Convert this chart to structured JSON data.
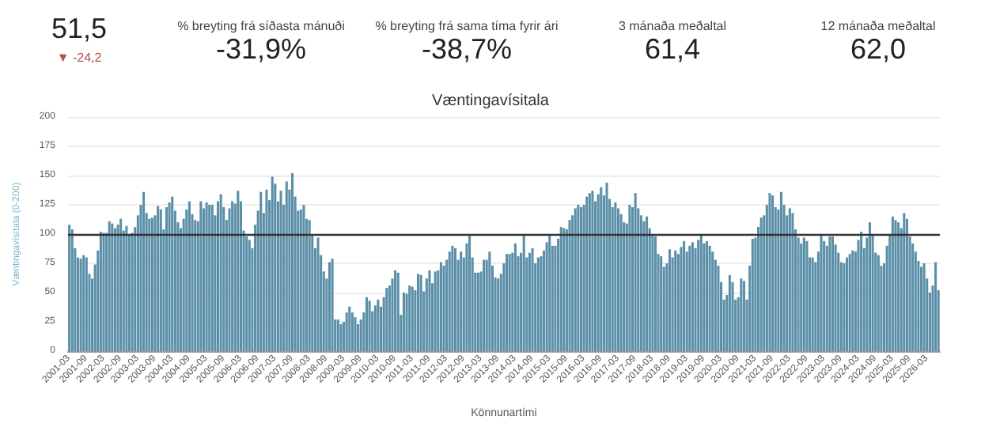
{
  "chart_data": [
    {
      "type": "other",
      "annotations": [
        "51,5",
        "▼ -24,2",
        "% breyting frá síðasta mánuði",
        "-31,9%",
        "% breyting frá sama tíma fyrir ári",
        "-38,7%",
        "3 mánaða meðaltal",
        "61,4",
        "12 mánaða meðaltal",
        "62,0"
      ]
    },
    {
      "type": "bar",
      "title": "Væntingavísitala",
      "xlabel": "Könnunartími",
      "ylabel": "Væntingavísitala (0-200)",
      "color": "#5b8fa8",
      "ylim": [
        0,
        200
      ],
      "yticks": [
        0,
        25,
        50,
        75,
        100,
        125,
        150,
        175,
        200
      ],
      "grid": "y",
      "ref_lines": [
        {
          "axis": "y",
          "value": 100,
          "color": "#333333"
        }
      ],
      "categories": [
        "2001-03",
        null,
        null,
        null,
        null,
        null,
        "2001-09",
        null,
        null,
        null,
        null,
        null,
        "2002-03",
        null,
        null,
        null,
        null,
        null,
        "2002-09",
        null,
        null,
        null,
        null,
        null,
        "2003-03",
        null,
        null,
        null,
        null,
        null,
        "2003-09",
        null,
        null,
        null,
        null,
        null,
        "2004-03",
        null,
        null,
        null,
        null,
        null,
        "2004-09",
        null,
        null,
        null,
        null,
        null,
        "2005-03",
        null,
        null,
        null,
        null,
        null,
        "2005-09",
        null,
        null,
        null,
        null,
        null,
        "2006-03",
        null,
        null,
        null,
        null,
        null,
        "2006-09",
        null,
        null,
        null,
        null,
        null,
        "2007-03",
        null,
        null,
        null,
        null,
        null,
        "2007-09",
        null,
        null,
        null,
        null,
        null,
        "2008-03",
        null,
        null,
        null,
        null,
        null,
        "2008-09",
        null,
        null,
        null,
        null,
        null,
        "2009-03",
        null,
        null,
        null,
        null,
        null,
        "2009-09",
        null,
        null,
        null,
        null,
        null,
        "2010-03",
        null,
        null,
        null,
        null,
        null,
        "2010-09",
        null,
        null,
        null,
        null,
        null,
        "2011-03",
        null,
        null,
        null,
        null,
        null,
        "2011-09",
        null,
        null,
        null,
        null,
        null,
        "2012-03",
        null,
        null,
        null,
        null,
        null,
        "2012-09",
        null,
        null,
        null,
        null,
        null,
        "2013-03",
        null,
        null,
        null,
        null,
        null,
        "2013-09",
        null,
        null,
        null,
        null,
        null,
        "2014-03",
        null,
        null,
        null,
        null,
        null,
        "2014-09",
        null,
        null,
        null,
        null,
        null,
        "2015-03",
        null,
        null,
        null,
        null,
        null,
        "2015-09",
        null,
        null,
        null,
        null,
        null,
        "2016-03",
        null,
        null,
        null,
        null,
        null,
        "2016-09",
        null,
        null,
        null,
        null,
        null,
        "2017-03",
        null,
        null,
        null,
        null,
        null,
        "2017-09",
        null,
        null,
        null,
        null,
        null,
        "2018-03",
        null,
        null,
        null,
        null,
        null,
        "2018-09",
        null,
        null,
        null,
        null,
        null,
        "2019-03",
        null,
        null,
        null,
        null,
        null,
        "2019-09",
        null,
        null,
        null,
        null,
        null,
        "2020-03",
        null,
        null,
        null,
        null,
        null,
        "2020-09",
        null,
        null,
        null,
        null,
        null,
        "2021-03",
        null,
        null,
        null,
        null,
        null,
        "2021-09",
        null,
        null,
        null,
        null,
        null,
        "2022-03",
        null,
        null,
        null,
        null,
        null,
        "2022-09",
        null,
        null,
        null,
        null,
        null,
        "2023-03",
        null,
        null,
        null,
        null,
        null,
        "2023-09",
        null,
        null,
        null,
        null,
        null,
        "2024-03",
        null,
        null,
        null,
        null,
        null,
        "2024-09",
        null,
        null,
        null,
        null,
        null,
        "2025-03",
        null,
        null,
        null,
        null,
        null,
        "2025-09",
        null,
        null,
        null,
        null,
        null,
        "2026-03",
        null,
        null,
        null,
        null
      ],
      "values": [
        108,
        104,
        88,
        80,
        79,
        82,
        80,
        66,
        62,
        74,
        86,
        102,
        101,
        101,
        111,
        109,
        105,
        108,
        113,
        103,
        107,
        99,
        101,
        106,
        116,
        125,
        136,
        118,
        113,
        114,
        116,
        124,
        121,
        104,
        123,
        127,
        132,
        120,
        110,
        105,
        113,
        121,
        128,
        117,
        112,
        111,
        128,
        122,
        127,
        125,
        125,
        116,
        128,
        134,
        123,
        112,
        122,
        128,
        126,
        137,
        128,
        103,
        98,
        95,
        88,
        108,
        120,
        136,
        118,
        138,
        129,
        149,
        143,
        128,
        137,
        125,
        145,
        138,
        152,
        132,
        120,
        121,
        125,
        113,
        112,
        100,
        88,
        97,
        82,
        68,
        62,
        76,
        79,
        27,
        27,
        23,
        25,
        33,
        38,
        33,
        29,
        23,
        27,
        33,
        46,
        43,
        34,
        39,
        44,
        38,
        46,
        54,
        56,
        62,
        69,
        67,
        31,
        50,
        49,
        56,
        55,
        52,
        66,
        65,
        51,
        62,
        69,
        58,
        68,
        69,
        76,
        73,
        78,
        85,
        90,
        88,
        78,
        85,
        80,
        92,
        100,
        80,
        67,
        67,
        68,
        78,
        78,
        85,
        73,
        63,
        62,
        66,
        75,
        83,
        83,
        84,
        92,
        81,
        84,
        100,
        80,
        84,
        88,
        75,
        80,
        81,
        86,
        93,
        100,
        90,
        90,
        96,
        106,
        105,
        104,
        112,
        116,
        122,
        125,
        123,
        125,
        132,
        135,
        137,
        128,
        134,
        140,
        133,
        144,
        130,
        123,
        127,
        122,
        117,
        110,
        109,
        125,
        123,
        135,
        122,
        116,
        111,
        115,
        105,
        100,
        98,
        83,
        81,
        72,
        75,
        87,
        80,
        86,
        83,
        89,
        94,
        85,
        90,
        93,
        88,
        95,
        100,
        92,
        94,
        90,
        85,
        78,
        73,
        59,
        44,
        48,
        65,
        59,
        44,
        46,
        62,
        60,
        44,
        73,
        96,
        97,
        106,
        114,
        116,
        125,
        135,
        133,
        123,
        121,
        136,
        125,
        116,
        122,
        118,
        104,
        97,
        92,
        97,
        94,
        80,
        80,
        76,
        85,
        100,
        94,
        90,
        98,
        98,
        91,
        84,
        76,
        75,
        80,
        83,
        86,
        85,
        95,
        102,
        88,
        97,
        110,
        100,
        84,
        82,
        73,
        75,
        90,
        100,
        115,
        112,
        110,
        105,
        118,
        113,
        98,
        92,
        85,
        77,
        72,
        75,
        62,
        50,
        56,
        76,
        52
      ]
    }
  ]
}
